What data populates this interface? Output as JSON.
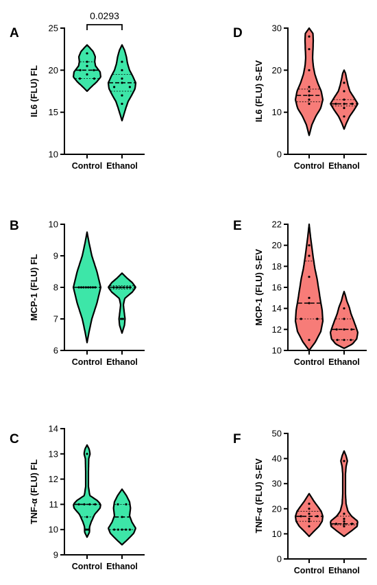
{
  "colors": {
    "green": "#3DE6A8",
    "red": "#F77C78"
  },
  "chart_data": [
    {
      "panel": "A",
      "type": "violin",
      "ylabel": "IL6 (FLU) FL",
      "categories": [
        "Control",
        "Ethanol"
      ],
      "ylim": [
        10,
        25
      ],
      "yticks": [
        10,
        15,
        20,
        25
      ],
      "color": "green",
      "annotation": "0.0293",
      "series": [
        {
          "values": [
            22,
            21,
            20.5,
            20,
            19.5,
            19,
            19,
            20
          ],
          "median": 20,
          "q1": 19,
          "q3": 21,
          "min": 17.5,
          "max": 23,
          "shape": [
            [
              17.5,
              0
            ],
            [
              18,
              0.3
            ],
            [
              18.6,
              0.7
            ],
            [
              19.2,
              1
            ],
            [
              19.8,
              0.95
            ],
            [
              20.5,
              0.62
            ],
            [
              21,
              0.56
            ],
            [
              21.6,
              0.6
            ],
            [
              22.2,
              0.45
            ],
            [
              22.7,
              0.18
            ],
            [
              23,
              0
            ]
          ]
        },
        {
          "values": [
            21,
            20,
            19,
            18,
            18,
            18.5,
            17,
            16
          ],
          "median": 18.5,
          "q1": 17.5,
          "q3": 19.5,
          "min": 14,
          "max": 23,
          "shape": [
            [
              14,
              0
            ],
            [
              14.8,
              0.15
            ],
            [
              15.6,
              0.3
            ],
            [
              16.3,
              0.45
            ],
            [
              17,
              0.7
            ],
            [
              17.8,
              0.95
            ],
            [
              18.5,
              1
            ],
            [
              19.3,
              0.78
            ],
            [
              20,
              0.55
            ],
            [
              20.8,
              0.4
            ],
            [
              21.6,
              0.32
            ],
            [
              22.4,
              0.18
            ],
            [
              23,
              0
            ]
          ]
        }
      ]
    },
    {
      "panel": "B",
      "type": "violin",
      "ylabel": "MCP-1 (FLU) FL",
      "categories": [
        "Control",
        "Ethanol"
      ],
      "ylim": [
        6,
        10
      ],
      "yticks": [
        6,
        7,
        8,
        9,
        10
      ],
      "color": "green",
      "series": [
        {
          "values": [
            8,
            8,
            8,
            8,
            8,
            8,
            8,
            8
          ],
          "median": 8,
          "q1": 8,
          "q3": 8,
          "min": 6.25,
          "max": 9.75,
          "shape": [
            [
              6.25,
              0
            ],
            [
              6.6,
              0.15
            ],
            [
              7,
              0.35
            ],
            [
              7.5,
              0.72
            ],
            [
              8,
              1
            ],
            [
              8.5,
              0.72
            ],
            [
              9,
              0.35
            ],
            [
              9.4,
              0.15
            ],
            [
              9.75,
              0
            ]
          ]
        },
        {
          "values": [
            8,
            8,
            8,
            8,
            8,
            8,
            7,
            7
          ],
          "median": 8,
          "q1": 7.95,
          "q3": 8.05,
          "min": 6.55,
          "max": 8.45,
          "shape": [
            [
              6.55,
              0
            ],
            [
              6.8,
              0.18
            ],
            [
              7,
              0.22
            ],
            [
              7.25,
              0.15
            ],
            [
              7.45,
              0.1
            ],
            [
              7.65,
              0.2
            ],
            [
              7.85,
              0.75
            ],
            [
              8,
              1
            ],
            [
              8.15,
              0.75
            ],
            [
              8.3,
              0.35
            ],
            [
              8.45,
              0
            ]
          ]
        }
      ]
    },
    {
      "panel": "C",
      "type": "violin",
      "ylabel": "TNF-α (FLU) FL",
      "categories": [
        "Control",
        "Ethanol"
      ],
      "ylim": [
        9,
        14
      ],
      "yticks": [
        9,
        10,
        11,
        12,
        13,
        14
      ],
      "color": "green",
      "series": [
        {
          "values": [
            13,
            11,
            11,
            11,
            11,
            10.5,
            10,
            10
          ],
          "median": 11,
          "q1": 10.5,
          "q3": 11,
          "min": 9.7,
          "max": 13.35,
          "shape": [
            [
              9.7,
              0
            ],
            [
              9.9,
              0.18
            ],
            [
              10.1,
              0.18
            ],
            [
              10.3,
              0.3
            ],
            [
              10.6,
              0.55
            ],
            [
              10.85,
              0.95
            ],
            [
              11,
              1
            ],
            [
              11.15,
              0.75
            ],
            [
              11.35,
              0.2
            ],
            [
              11.7,
              0.1
            ],
            [
              12.3,
              0.1
            ],
            [
              12.8,
              0.12
            ],
            [
              13,
              0.22
            ],
            [
              13.2,
              0.15
            ],
            [
              13.35,
              0
            ]
          ]
        },
        {
          "values": [
            11,
            11,
            10.5,
            10,
            10,
            10,
            10,
            10
          ],
          "median": 10.5,
          "q1": 10,
          "q3": 11,
          "min": 9.4,
          "max": 11.6,
          "shape": [
            [
              9.4,
              0
            ],
            [
              9.6,
              0.4
            ],
            [
              9.85,
              0.85
            ],
            [
              10.05,
              1
            ],
            [
              10.3,
              0.72
            ],
            [
              10.55,
              0.55
            ],
            [
              10.85,
              0.62
            ],
            [
              11.1,
              0.55
            ],
            [
              11.35,
              0.32
            ],
            [
              11.6,
              0
            ]
          ]
        }
      ]
    },
    {
      "panel": "D",
      "type": "violin",
      "ylabel": "IL6 (FLU) S-EV",
      "categories": [
        "Control",
        "Ethanol"
      ],
      "ylim": [
        0,
        30
      ],
      "yticks": [
        0,
        10,
        20,
        30
      ],
      "color": "red",
      "series": [
        {
          "values": [
            28,
            25,
            20,
            16,
            15,
            14,
            13,
            12
          ],
          "median": 14,
          "q1": 12.5,
          "q3": 15.5,
          "min": 4.5,
          "max": 30,
          "shape": [
            [
              4.5,
              0
            ],
            [
              7,
              0.2
            ],
            [
              9,
              0.48
            ],
            [
              11,
              0.85
            ],
            [
              13,
              1
            ],
            [
              15,
              0.88
            ],
            [
              17,
              0.62
            ],
            [
              19,
              0.42
            ],
            [
              21,
              0.3
            ],
            [
              23,
              0.25
            ],
            [
              25,
              0.28
            ],
            [
              27,
              0.3
            ],
            [
              28.7,
              0.28
            ],
            [
              30,
              0
            ]
          ]
        },
        {
          "values": [
            17,
            15,
            13,
            12,
            12,
            12,
            11,
            9
          ],
          "median": 12,
          "q1": 11.5,
          "q3": 13,
          "min": 6,
          "max": 20,
          "shape": [
            [
              6,
              0
            ],
            [
              7.5,
              0.18
            ],
            [
              9,
              0.4
            ],
            [
              10.5,
              0.72
            ],
            [
              12,
              1
            ],
            [
              13.5,
              0.72
            ],
            [
              15,
              0.42
            ],
            [
              16.5,
              0.28
            ],
            [
              18,
              0.18
            ],
            [
              19.3,
              0.1
            ],
            [
              20,
              0
            ]
          ]
        }
      ]
    },
    {
      "panel": "E",
      "type": "violin",
      "ylabel": "MCP-1 (FLU) S-EV",
      "categories": [
        "Control",
        "Ethanol"
      ],
      "ylim": [
        10,
        22
      ],
      "yticks": [
        10,
        12,
        14,
        16,
        18,
        20,
        22
      ],
      "color": "red",
      "series": [
        {
          "values": [
            20,
            19,
            17,
            15,
            14.5,
            13,
            13,
            11
          ],
          "median": 14.5,
          "q1": 13,
          "q3": 18.5,
          "min": 10,
          "max": 22,
          "shape": [
            [
              10,
              0
            ],
            [
              10.8,
              0.45
            ],
            [
              11.8,
              0.85
            ],
            [
              12.8,
              1
            ],
            [
              13.8,
              0.95
            ],
            [
              14.8,
              0.82
            ],
            [
              15.8,
              0.7
            ],
            [
              16.8,
              0.58
            ],
            [
              17.8,
              0.42
            ],
            [
              18.8,
              0.3
            ],
            [
              19.8,
              0.2
            ],
            [
              20.8,
              0.1
            ],
            [
              22,
              0
            ]
          ]
        },
        {
          "values": [
            14,
            13,
            12,
            12,
            12,
            11,
            11,
            11
          ],
          "median": 12,
          "q1": 11,
          "q3": 13,
          "min": 10.2,
          "max": 15.6,
          "shape": [
            [
              10.2,
              0
            ],
            [
              10.6,
              0.6
            ],
            [
              11.1,
              0.92
            ],
            [
              11.7,
              1
            ],
            [
              12.3,
              0.85
            ],
            [
              12.9,
              0.68
            ],
            [
              13.5,
              0.5
            ],
            [
              14.1,
              0.38
            ],
            [
              14.7,
              0.2
            ],
            [
              15.2,
              0.1
            ],
            [
              15.6,
              0
            ]
          ]
        }
      ]
    },
    {
      "panel": "F",
      "type": "violin",
      "ylabel": "TNF-α (FLU) S-EV",
      "categories": [
        "Control",
        "Ethanol"
      ],
      "ylim": [
        0,
        50
      ],
      "yticks": [
        0,
        10,
        20,
        30,
        40,
        50
      ],
      "color": "red",
      "series": [
        {
          "values": [
            22,
            20,
            18,
            17,
            17,
            16,
            15,
            13
          ],
          "median": 17,
          "q1": 15,
          "q3": 19,
          "min": 9,
          "max": 26,
          "shape": [
            [
              9,
              0
            ],
            [
              11,
              0.35
            ],
            [
              13,
              0.72
            ],
            [
              15,
              0.95
            ],
            [
              17,
              1
            ],
            [
              19,
              0.88
            ],
            [
              21,
              0.62
            ],
            [
              23,
              0.35
            ],
            [
              25,
              0.12
            ],
            [
              26,
              0
            ]
          ]
        },
        {
          "values": [
            39,
            18,
            16,
            15,
            14,
            14,
            14,
            13
          ],
          "median": 14,
          "q1": 13.5,
          "q3": 17,
          "min": 9,
          "max": 43,
          "shape": [
            [
              9,
              0
            ],
            [
              11,
              0.5
            ],
            [
              13,
              0.95
            ],
            [
              15,
              1
            ],
            [
              17,
              0.55
            ],
            [
              19,
              0.28
            ],
            [
              22,
              0.14
            ],
            [
              26,
              0.1
            ],
            [
              30,
              0.1
            ],
            [
              34,
              0.1
            ],
            [
              37,
              0.15
            ],
            [
              39,
              0.24
            ],
            [
              41,
              0.15
            ],
            [
              43,
              0
            ]
          ]
        }
      ]
    }
  ]
}
